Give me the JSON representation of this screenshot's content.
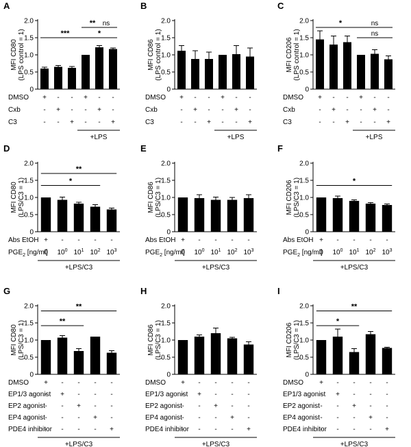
{
  "chart_data": [
    {
      "panel": "A",
      "type": "bar",
      "ylabel": "MFI CD80",
      "ylabel2": "(LPS control = 1)",
      "ylim": [
        0,
        2.0
      ],
      "yticks": [
        "0",
        "0.5",
        "1.0",
        "1.5",
        "2.0"
      ],
      "values": [
        0.6,
        0.65,
        0.62,
        1.0,
        1.22,
        1.17
      ],
      "errors": [
        0.04,
        0.04,
        0.04,
        0.0,
        0.05,
        0.03
      ],
      "rows": [
        {
          "label": "DMSO",
          "symbols": [
            "+",
            "-",
            "-",
            "+",
            "-",
            "-"
          ]
        },
        {
          "label": "Cxb",
          "symbols": [
            "-",
            "+",
            "-",
            "-",
            "+",
            "-"
          ]
        },
        {
          "label": "C3",
          "symbols": [
            "-",
            "-",
            "+",
            "-",
            "-",
            "+"
          ]
        }
      ],
      "group": {
        "label": "+LPS",
        "from": 3,
        "to": 5
      },
      "significance": [
        {
          "from": 0,
          "to": 3,
          "label": "***",
          "y": 1.5
        },
        {
          "from": 3,
          "to": 4,
          "label": "**",
          "y": 1.8
        },
        {
          "from": 4,
          "to": 5,
          "label": "ns",
          "y": 1.8
        },
        {
          "from": 3,
          "to": 5,
          "label": "*",
          "y": 1.5
        }
      ]
    },
    {
      "panel": "B",
      "type": "bar",
      "ylabel": "MFI CD86",
      "ylabel2": "(LPS control = 1)",
      "ylim": [
        0,
        2.0
      ],
      "yticks": [
        "0",
        "0.5",
        "1.0",
        "1.5",
        "2.0"
      ],
      "values": [
        1.12,
        0.88,
        0.88,
        1.0,
        1.02,
        0.95
      ],
      "errors": [
        0.15,
        0.24,
        0.2,
        0.0,
        0.25,
        0.25
      ],
      "rows": [
        {
          "label": "DMSO",
          "symbols": [
            "+",
            "-",
            "-",
            "+",
            "-",
            "-"
          ]
        },
        {
          "label": "Cxb",
          "symbols": [
            "-",
            "+",
            "-",
            "-",
            "+",
            "-"
          ]
        },
        {
          "label": "C3",
          "symbols": [
            "-",
            "-",
            "+",
            "-",
            "-",
            "+"
          ]
        }
      ],
      "group": {
        "label": "+LPS",
        "from": 3,
        "to": 5
      },
      "significance": []
    },
    {
      "panel": "C",
      "type": "bar",
      "ylabel": "MFI CD206",
      "ylabel2": "(LPS control = 1)",
      "ylim": [
        0,
        2.0
      ],
      "yticks": [
        "0",
        "0.5",
        "1.0",
        "1.5",
        "2.0"
      ],
      "values": [
        1.45,
        1.3,
        1.37,
        1.0,
        1.03,
        0.87
      ],
      "errors": [
        0.25,
        0.25,
        0.18,
        0.0,
        0.12,
        0.1
      ],
      "rows": [
        {
          "label": "DMSO",
          "symbols": [
            "+",
            "-",
            "-",
            "+",
            "-",
            "-"
          ]
        },
        {
          "label": "Cxb",
          "symbols": [
            "-",
            "+",
            "-",
            "-",
            "+",
            "-"
          ]
        },
        {
          "label": "C3",
          "symbols": [
            "-",
            "-",
            "+",
            "-",
            "-",
            "+"
          ]
        }
      ],
      "group": {
        "label": "+LPS",
        "from": 3,
        "to": 5
      },
      "significance": [
        {
          "from": 0,
          "to": 3,
          "label": "*",
          "y": 1.8
        },
        {
          "from": 3,
          "to": 5,
          "label": "ns",
          "y": 1.8
        },
        {
          "from": 3,
          "to": 5,
          "label": "ns",
          "y": 1.5
        }
      ]
    },
    {
      "panel": "D",
      "type": "bar",
      "ylabel": "MFI CD80",
      "ylabel2": "(LPS/C3 = 1)",
      "ylim": [
        0,
        2.0
      ],
      "yticks": [
        "0",
        "0.5",
        "1.0",
        "1.5",
        "2.0"
      ],
      "values": [
        1.0,
        0.93,
        0.82,
        0.73,
        0.65
      ],
      "errors": [
        0.0,
        0.08,
        0.04,
        0.06,
        0.04
      ],
      "rows": [
        {
          "label": "Abs EtOH",
          "symbols": [
            "+",
            "-",
            "-",
            "-",
            "-"
          ]
        },
        {
          "label": "PGE",
          "sub": "2",
          "unit": " [ng/ml]",
          "symbols": [
            "0",
            "10|0",
            "10|1",
            "10|2",
            "10|3"
          ]
        }
      ],
      "group": {
        "label": "+LPS/C3",
        "from": 0,
        "to": 4
      },
      "significance": [
        {
          "from": 0,
          "to": 4,
          "label": "**",
          "y": 1.7
        },
        {
          "from": 0,
          "to": 3,
          "label": "*",
          "y": 1.35
        }
      ]
    },
    {
      "panel": "E",
      "type": "bar",
      "ylabel": "MFI CD86",
      "ylabel2": "(LPS/C3 = 1)",
      "ylim": [
        0,
        2.0
      ],
      "yticks": [
        "0",
        "0.5",
        "1.0",
        "1.5",
        "2.0"
      ],
      "values": [
        1.0,
        0.98,
        0.93,
        0.93,
        0.98
      ],
      "errors": [
        0.0,
        0.1,
        0.08,
        0.07,
        0.1
      ],
      "rows": [
        {
          "label": "Abs EtOH",
          "symbols": [
            "+",
            "-",
            "-",
            "-",
            "-"
          ]
        },
        {
          "label": "PGE",
          "sub": "2",
          "unit": " [ng/ml]",
          "symbols": [
            "0",
            "10|0",
            "10|1",
            "10|2",
            "10|3"
          ]
        }
      ],
      "group": {
        "label": "+LPS/C3",
        "from": 0,
        "to": 4
      },
      "significance": []
    },
    {
      "panel": "F",
      "type": "bar",
      "ylabel": "MFI CD206",
      "ylabel2": "(LPS/C3 = 1)",
      "ylim": [
        0,
        2.0
      ],
      "yticks": [
        "0",
        "0.5",
        "1.0",
        "1.5",
        "2.0"
      ],
      "values": [
        1.0,
        0.98,
        0.9,
        0.82,
        0.78
      ],
      "errors": [
        0.0,
        0.06,
        0.03,
        0.03,
        0.03
      ],
      "rows": [
        {
          "label": "Abs EtOH",
          "symbols": [
            "+",
            "-",
            "-",
            "-",
            "-"
          ]
        },
        {
          "label": "PGE",
          "sub": "2",
          "unit": " [ng/ml]",
          "symbols": [
            "0",
            "10|0",
            "10|1",
            "10|2",
            "10|3"
          ]
        }
      ],
      "group": {
        "label": "+LPS/C3",
        "from": 0,
        "to": 4
      },
      "significance": [
        {
          "from": 0,
          "to": 4,
          "label": "*",
          "y": 1.35
        }
      ]
    },
    {
      "panel": "G",
      "type": "bar",
      "ylabel": "MFI CD80",
      "ylabel2": "(LPS/C3 = 1)",
      "ylim": [
        0,
        2.0
      ],
      "yticks": [
        "0",
        "0.5",
        "1.0",
        "1.5",
        "2.0"
      ],
      "values": [
        1.0,
        1.07,
        0.68,
        1.1,
        0.63
      ],
      "errors": [
        0.0,
        0.06,
        0.07,
        0.0,
        0.06
      ],
      "rows": [
        {
          "label": "DMSO",
          "symbols": [
            "+",
            "-",
            "-",
            "-",
            "-"
          ]
        },
        {
          "label": "EP1/3 agonist",
          "symbols": [
            "-",
            "+",
            "-",
            "-",
            "-"
          ]
        },
        {
          "label": "EP2 agonist",
          "symbols": [
            "-",
            "-",
            "+",
            "-",
            "-"
          ]
        },
        {
          "label": "EP4 agonist",
          "symbols": [
            "-",
            "-",
            "-",
            "+",
            "-"
          ]
        },
        {
          "label": "PDE4 inhibitor",
          "symbols": [
            "-",
            "-",
            "-",
            "-",
            "+"
          ]
        }
      ],
      "group": {
        "label": "+LPS/C3",
        "from": 0,
        "to": 4
      },
      "significance": [
        {
          "from": 0,
          "to": 4,
          "label": "**",
          "y": 1.85
        },
        {
          "from": 0,
          "to": 2,
          "label": "**",
          "y": 1.42
        }
      ]
    },
    {
      "panel": "H",
      "type": "bar",
      "ylabel": "MFI CD86",
      "ylabel2": "(LPS/C3 = 1)",
      "ylim": [
        0,
        2.0
      ],
      "yticks": [
        "0",
        "0.5",
        "1.0",
        "1.5",
        "2.0"
      ],
      "values": [
        1.0,
        1.1,
        1.2,
        1.05,
        0.87
      ],
      "errors": [
        0.0,
        0.05,
        0.15,
        0.03,
        0.08
      ],
      "rows": [
        {
          "label": "DMSO",
          "symbols": [
            "+",
            "-",
            "-",
            "-",
            "-"
          ]
        },
        {
          "label": "EP1/3 agonist",
          "symbols": [
            "-",
            "+",
            "-",
            "-",
            "-"
          ]
        },
        {
          "label": "EP2 agonist",
          "symbols": [
            "-",
            "-",
            "+",
            "-",
            "-"
          ]
        },
        {
          "label": "EP4 agonist",
          "symbols": [
            "-",
            "-",
            "-",
            "+",
            "-"
          ]
        },
        {
          "label": "PDE4 inhibitor",
          "symbols": [
            "-",
            "-",
            "-",
            "-",
            "+"
          ]
        }
      ],
      "group": {
        "label": "+LPS/C3",
        "from": 0,
        "to": 4
      },
      "significance": []
    },
    {
      "panel": "I",
      "type": "bar",
      "ylabel": "MFI CD206",
      "ylabel2": "(LPS/C3 = 1)",
      "ylim": [
        0,
        2.0
      ],
      "yticks": [
        "0",
        "0.5",
        "1.0",
        "1.5",
        "2.0"
      ],
      "values": [
        1.0,
        1.1,
        0.65,
        1.17,
        0.77
      ],
      "errors": [
        0.0,
        0.22,
        0.1,
        0.08,
        0.02
      ],
      "rows": [
        {
          "label": "DMSO",
          "symbols": [
            "+",
            "-",
            "-",
            "-",
            "-"
          ]
        },
        {
          "label": "EP1/3 agonist",
          "symbols": [
            "-",
            "+",
            "-",
            "-",
            "-"
          ]
        },
        {
          "label": "EP2 agonist",
          "symbols": [
            "-",
            "-",
            "+",
            "-",
            "-"
          ]
        },
        {
          "label": "EP4 agonist",
          "symbols": [
            "-",
            "-",
            "-",
            "+",
            "-"
          ]
        },
        {
          "label": "PDE4 inhibitor",
          "symbols": [
            "-",
            "-",
            "-",
            "-",
            "+"
          ]
        }
      ],
      "group": {
        "label": "+LPS/C3",
        "from": 0,
        "to": 4
      },
      "significance": [
        {
          "from": 0,
          "to": 4,
          "label": "**",
          "y": 1.85
        },
        {
          "from": 0,
          "to": 2,
          "label": "*",
          "y": 1.42
        }
      ]
    }
  ]
}
